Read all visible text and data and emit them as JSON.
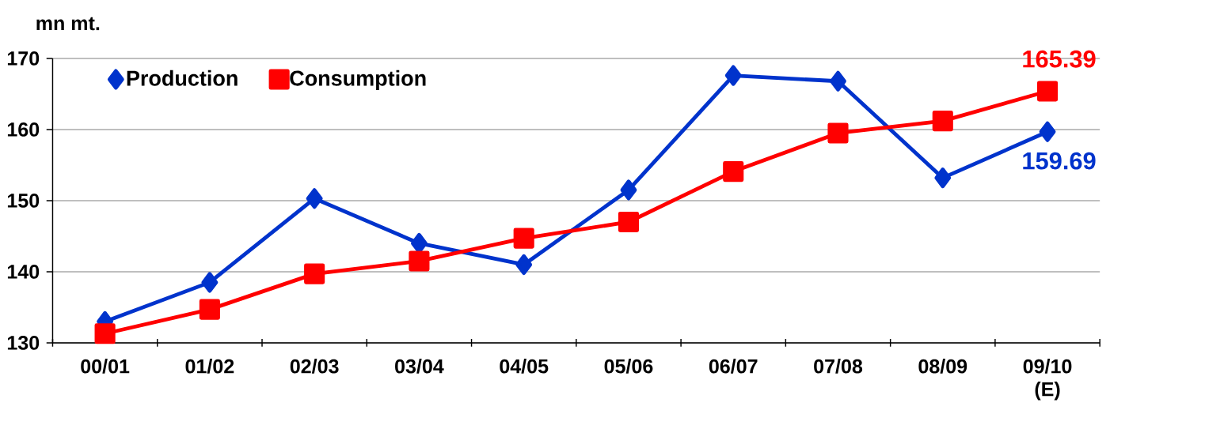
{
  "chart_data": {
    "type": "line",
    "ylabel": "mn mt.",
    "categories": [
      "00/01",
      "01/02",
      "02/03",
      "03/04",
      "04/05",
      "05/06",
      "06/07",
      "07/08",
      "08/09",
      "09/10 (E)"
    ],
    "series": [
      {
        "name": "Production",
        "color": "#0033cc",
        "marker": "diamond",
        "values": [
          133.0,
          138.5,
          150.3,
          144.0,
          141.0,
          151.5,
          167.6,
          166.8,
          153.2,
          159.69
        ],
        "value_labels": [
          null,
          null,
          null,
          null,
          null,
          null,
          null,
          null,
          null,
          "159.69"
        ]
      },
      {
        "name": "Consumption",
        "color": "#ff0000",
        "marker": "square",
        "values": [
          131.3,
          134.7,
          139.7,
          141.5,
          144.7,
          147.0,
          154.1,
          159.5,
          161.2,
          165.39
        ],
        "value_labels": [
          null,
          null,
          null,
          null,
          null,
          null,
          null,
          null,
          null,
          "165.39"
        ]
      }
    ],
    "ylim": [
      130,
      170
    ],
    "yticks": [
      130,
      140,
      150,
      160,
      170
    ],
    "grid": "y",
    "legend": "top left",
    "line_style": "solid"
  }
}
